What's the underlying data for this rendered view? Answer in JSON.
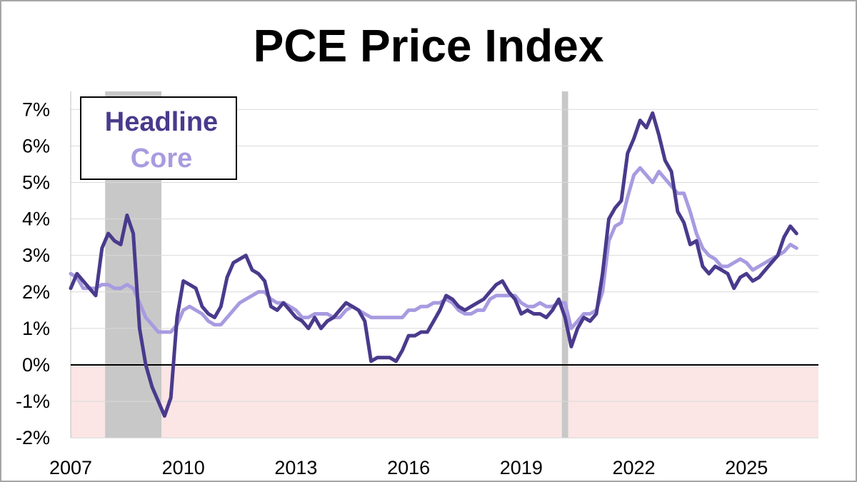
{
  "chart_data": {
    "type": "line",
    "title": "PCE Price Index",
    "x_range": [
      "2007-01",
      "2026-12"
    ],
    "ylim": [
      -2,
      7.5
    ],
    "y_ticks": [
      {
        "value": 7,
        "label": "7%"
      },
      {
        "value": 6,
        "label": "6%"
      },
      {
        "value": 5,
        "label": "5%"
      },
      {
        "value": 4,
        "label": "4%"
      },
      {
        "value": 3,
        "label": "3%"
      },
      {
        "value": 2,
        "label": "2%"
      },
      {
        "value": 1,
        "label": "1%"
      },
      {
        "value": 0,
        "label": "0%"
      },
      {
        "value": -1,
        "label": "-1%"
      },
      {
        "value": -2,
        "label": "-2%"
      }
    ],
    "x_ticks": [
      {
        "value": "2007-01",
        "label": "2007"
      },
      {
        "value": "2010-01",
        "label": "2010"
      },
      {
        "value": "2013-01",
        "label": "2013"
      },
      {
        "value": "2016-01",
        "label": "2016"
      },
      {
        "value": "2019-01",
        "label": "2019"
      },
      {
        "value": "2022-01",
        "label": "2022"
      },
      {
        "value": "2025-01",
        "label": "2025"
      }
    ],
    "recessions": [
      {
        "start": "2007-12",
        "end": "2009-06"
      },
      {
        "start": "2020-02",
        "end": "2020-04"
      }
    ],
    "negative_zone_color": "#fbe5e5",
    "grid": true,
    "legend_position": "top-left",
    "series": [
      {
        "name": "Headline",
        "color": "#4a3a8c",
        "points": [
          [
            "2007-01",
            2.1
          ],
          [
            "2007-03",
            2.5
          ],
          [
            "2007-05",
            2.3
          ],
          [
            "2007-07",
            2.1
          ],
          [
            "2007-09",
            1.9
          ],
          [
            "2007-11",
            3.2
          ],
          [
            "2008-01",
            3.6
          ],
          [
            "2008-03",
            3.4
          ],
          [
            "2008-05",
            3.3
          ],
          [
            "2008-07",
            4.1
          ],
          [
            "2008-09",
            3.6
          ],
          [
            "2008-11",
            1.0
          ],
          [
            "2009-01",
            0.0
          ],
          [
            "2009-03",
            -0.6
          ],
          [
            "2009-05",
            -1.0
          ],
          [
            "2009-07",
            -1.4
          ],
          [
            "2009-09",
            -0.9
          ],
          [
            "2009-11",
            1.3
          ],
          [
            "2010-01",
            2.3
          ],
          [
            "2010-03",
            2.2
          ],
          [
            "2010-05",
            2.1
          ],
          [
            "2010-07",
            1.6
          ],
          [
            "2010-09",
            1.4
          ],
          [
            "2010-11",
            1.3
          ],
          [
            "2011-01",
            1.6
          ],
          [
            "2011-03",
            2.4
          ],
          [
            "2011-05",
            2.8
          ],
          [
            "2011-07",
            2.9
          ],
          [
            "2011-09",
            3.0
          ],
          [
            "2011-11",
            2.6
          ],
          [
            "2012-01",
            2.5
          ],
          [
            "2012-03",
            2.3
          ],
          [
            "2012-05",
            1.6
          ],
          [
            "2012-07",
            1.5
          ],
          [
            "2012-09",
            1.7
          ],
          [
            "2012-11",
            1.5
          ],
          [
            "2013-01",
            1.3
          ],
          [
            "2013-03",
            1.2
          ],
          [
            "2013-05",
            1.0
          ],
          [
            "2013-07",
            1.3
          ],
          [
            "2013-09",
            1.0
          ],
          [
            "2013-11",
            1.2
          ],
          [
            "2014-01",
            1.3
          ],
          [
            "2014-03",
            1.5
          ],
          [
            "2014-05",
            1.7
          ],
          [
            "2014-07",
            1.6
          ],
          [
            "2014-09",
            1.5
          ],
          [
            "2014-11",
            1.2
          ],
          [
            "2015-01",
            0.1
          ],
          [
            "2015-03",
            0.2
          ],
          [
            "2015-05",
            0.2
          ],
          [
            "2015-07",
            0.2
          ],
          [
            "2015-09",
            0.1
          ],
          [
            "2015-11",
            0.4
          ],
          [
            "2016-01",
            0.8
          ],
          [
            "2016-03",
            0.8
          ],
          [
            "2016-05",
            0.9
          ],
          [
            "2016-07",
            0.9
          ],
          [
            "2016-09",
            1.2
          ],
          [
            "2016-11",
            1.5
          ],
          [
            "2017-01",
            1.9
          ],
          [
            "2017-03",
            1.8
          ],
          [
            "2017-05",
            1.6
          ],
          [
            "2017-07",
            1.5
          ],
          [
            "2017-09",
            1.6
          ],
          [
            "2017-11",
            1.7
          ],
          [
            "2018-01",
            1.8
          ],
          [
            "2018-03",
            2.0
          ],
          [
            "2018-05",
            2.2
          ],
          [
            "2018-07",
            2.3
          ],
          [
            "2018-09",
            2.0
          ],
          [
            "2018-11",
            1.8
          ],
          [
            "2019-01",
            1.4
          ],
          [
            "2019-03",
            1.5
          ],
          [
            "2019-05",
            1.4
          ],
          [
            "2019-07",
            1.4
          ],
          [
            "2019-09",
            1.3
          ],
          [
            "2019-11",
            1.5
          ],
          [
            "2020-01",
            1.8
          ],
          [
            "2020-03",
            1.3
          ],
          [
            "2020-05",
            0.5
          ],
          [
            "2020-07",
            1.0
          ],
          [
            "2020-09",
            1.3
          ],
          [
            "2020-11",
            1.2
          ],
          [
            "2021-01",
            1.4
          ],
          [
            "2021-03",
            2.5
          ],
          [
            "2021-05",
            4.0
          ],
          [
            "2021-07",
            4.3
          ],
          [
            "2021-09",
            4.5
          ],
          [
            "2021-11",
            5.8
          ],
          [
            "2022-01",
            6.2
          ],
          [
            "2022-03",
            6.7
          ],
          [
            "2022-05",
            6.5
          ],
          [
            "2022-07",
            6.9
          ],
          [
            "2022-09",
            6.3
          ],
          [
            "2022-11",
            5.6
          ],
          [
            "2023-01",
            5.3
          ],
          [
            "2023-03",
            4.2
          ],
          [
            "2023-05",
            3.9
          ],
          [
            "2023-07",
            3.3
          ],
          [
            "2023-09",
            3.4
          ],
          [
            "2023-11",
            2.7
          ],
          [
            "2024-01",
            2.5
          ],
          [
            "2024-03",
            2.7
          ],
          [
            "2024-05",
            2.6
          ],
          [
            "2024-07",
            2.5
          ],
          [
            "2024-09",
            2.1
          ],
          [
            "2024-11",
            2.4
          ],
          [
            "2025-01",
            2.5
          ],
          [
            "2025-03",
            2.3
          ],
          [
            "2025-05",
            2.4
          ],
          [
            "2025-07",
            2.6
          ],
          [
            "2025-09",
            2.8
          ],
          [
            "2025-11",
            3.0
          ],
          [
            "2026-01",
            3.5
          ],
          [
            "2026-03",
            3.8
          ],
          [
            "2026-05",
            3.6
          ]
        ]
      },
      {
        "name": "Core",
        "color": "#a89be0",
        "points": [
          [
            "2007-01",
            2.5
          ],
          [
            "2007-03",
            2.4
          ],
          [
            "2007-05",
            2.1
          ],
          [
            "2007-07",
            2.1
          ],
          [
            "2007-09",
            2.1
          ],
          [
            "2007-11",
            2.2
          ],
          [
            "2008-01",
            2.2
          ],
          [
            "2008-03",
            2.1
          ],
          [
            "2008-05",
            2.1
          ],
          [
            "2008-07",
            2.2
          ],
          [
            "2008-09",
            2.1
          ],
          [
            "2008-11",
            1.7
          ],
          [
            "2009-01",
            1.3
          ],
          [
            "2009-03",
            1.1
          ],
          [
            "2009-05",
            0.9
          ],
          [
            "2009-07",
            0.9
          ],
          [
            "2009-09",
            0.9
          ],
          [
            "2009-11",
            1.1
          ],
          [
            "2010-01",
            1.5
          ],
          [
            "2010-03",
            1.6
          ],
          [
            "2010-05",
            1.5
          ],
          [
            "2010-07",
            1.4
          ],
          [
            "2010-09",
            1.2
          ],
          [
            "2010-11",
            1.1
          ],
          [
            "2011-01",
            1.1
          ],
          [
            "2011-03",
            1.3
          ],
          [
            "2011-05",
            1.5
          ],
          [
            "2011-07",
            1.7
          ],
          [
            "2011-09",
            1.8
          ],
          [
            "2011-11",
            1.9
          ],
          [
            "2012-01",
            2.0
          ],
          [
            "2012-03",
            2.0
          ],
          [
            "2012-05",
            1.8
          ],
          [
            "2012-07",
            1.7
          ],
          [
            "2012-09",
            1.7
          ],
          [
            "2012-11",
            1.6
          ],
          [
            "2013-01",
            1.5
          ],
          [
            "2013-03",
            1.3
          ],
          [
            "2013-05",
            1.3
          ],
          [
            "2013-07",
            1.4
          ],
          [
            "2013-09",
            1.4
          ],
          [
            "2013-11",
            1.4
          ],
          [
            "2014-01",
            1.3
          ],
          [
            "2014-03",
            1.3
          ],
          [
            "2014-05",
            1.5
          ],
          [
            "2014-07",
            1.6
          ],
          [
            "2014-09",
            1.5
          ],
          [
            "2014-11",
            1.4
          ],
          [
            "2015-01",
            1.3
          ],
          [
            "2015-03",
            1.3
          ],
          [
            "2015-05",
            1.3
          ],
          [
            "2015-07",
            1.3
          ],
          [
            "2015-09",
            1.3
          ],
          [
            "2015-11",
            1.3
          ],
          [
            "2016-01",
            1.5
          ],
          [
            "2016-03",
            1.5
          ],
          [
            "2016-05",
            1.6
          ],
          [
            "2016-07",
            1.6
          ],
          [
            "2016-09",
            1.7
          ],
          [
            "2016-11",
            1.7
          ],
          [
            "2017-01",
            1.8
          ],
          [
            "2017-03",
            1.7
          ],
          [
            "2017-05",
            1.5
          ],
          [
            "2017-07",
            1.4
          ],
          [
            "2017-09",
            1.4
          ],
          [
            "2017-11",
            1.5
          ],
          [
            "2018-01",
            1.5
          ],
          [
            "2018-03",
            1.8
          ],
          [
            "2018-05",
            1.9
          ],
          [
            "2018-07",
            1.9
          ],
          [
            "2018-09",
            1.9
          ],
          [
            "2018-11",
            1.9
          ],
          [
            "2019-01",
            1.7
          ],
          [
            "2019-03",
            1.6
          ],
          [
            "2019-05",
            1.6
          ],
          [
            "2019-07",
            1.7
          ],
          [
            "2019-09",
            1.6
          ],
          [
            "2019-11",
            1.6
          ],
          [
            "2020-01",
            1.7
          ],
          [
            "2020-03",
            1.7
          ],
          [
            "2020-05",
            1.0
          ],
          [
            "2020-07",
            1.2
          ],
          [
            "2020-09",
            1.4
          ],
          [
            "2020-11",
            1.4
          ],
          [
            "2021-01",
            1.5
          ],
          [
            "2021-03",
            2.0
          ],
          [
            "2021-05",
            3.4
          ],
          [
            "2021-07",
            3.8
          ],
          [
            "2021-09",
            3.9
          ],
          [
            "2021-11",
            4.6
          ],
          [
            "2022-01",
            5.2
          ],
          [
            "2022-03",
            5.4
          ],
          [
            "2022-05",
            5.2
          ],
          [
            "2022-07",
            5.0
          ],
          [
            "2022-09",
            5.3
          ],
          [
            "2022-11",
            5.1
          ],
          [
            "2023-01",
            4.9
          ],
          [
            "2023-03",
            4.7
          ],
          [
            "2023-05",
            4.7
          ],
          [
            "2023-07",
            4.2
          ],
          [
            "2023-09",
            3.6
          ],
          [
            "2023-11",
            3.2
          ],
          [
            "2024-01",
            3.0
          ],
          [
            "2024-03",
            2.9
          ],
          [
            "2024-05",
            2.7
          ],
          [
            "2024-07",
            2.7
          ],
          [
            "2024-09",
            2.8
          ],
          [
            "2024-11",
            2.9
          ],
          [
            "2025-01",
            2.8
          ],
          [
            "2025-03",
            2.6
          ],
          [
            "2025-05",
            2.7
          ],
          [
            "2025-07",
            2.8
          ],
          [
            "2025-09",
            2.9
          ],
          [
            "2025-11",
            3.0
          ],
          [
            "2026-01",
            3.1
          ],
          [
            "2026-03",
            3.3
          ],
          [
            "2026-05",
            3.2
          ]
        ]
      }
    ]
  }
}
